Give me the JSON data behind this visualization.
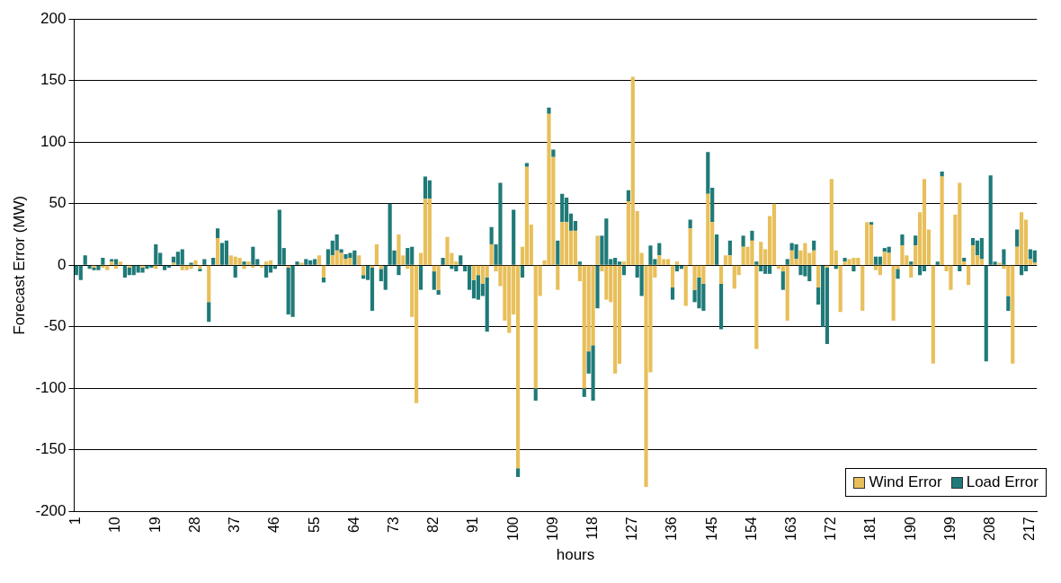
{
  "chart_data": {
    "type": "bar",
    "stacked": true,
    "xlabel": "hours",
    "ylabel": "Forecast Error (MW)",
    "categories": [
      "1",
      null,
      null,
      null,
      null,
      null,
      null,
      null,
      null,
      "10",
      null,
      null,
      null,
      null,
      null,
      null,
      null,
      null,
      "19",
      null,
      null,
      null,
      null,
      null,
      null,
      null,
      null,
      "28",
      null,
      null,
      null,
      null,
      null,
      null,
      null,
      null,
      "37",
      null,
      null,
      null,
      null,
      null,
      null,
      null,
      null,
      "46",
      null,
      null,
      null,
      null,
      null,
      null,
      null,
      null,
      "55",
      null,
      null,
      null,
      null,
      null,
      null,
      null,
      null,
      "64",
      null,
      null,
      null,
      null,
      null,
      null,
      null,
      null,
      "73",
      null,
      null,
      null,
      null,
      null,
      null,
      null,
      null,
      "82",
      null,
      null,
      null,
      null,
      null,
      null,
      null,
      null,
      "91",
      null,
      null,
      null,
      null,
      null,
      null,
      null,
      null,
      "100",
      null,
      null,
      null,
      null,
      null,
      null,
      null,
      null,
      "109",
      null,
      null,
      null,
      null,
      null,
      null,
      null,
      null,
      "118",
      null,
      null,
      null,
      null,
      null,
      null,
      null,
      null,
      "127",
      null,
      null,
      null,
      null,
      null,
      null,
      null,
      null,
      "136",
      null,
      null,
      null,
      null,
      null,
      null,
      null,
      null,
      "145",
      null,
      null,
      null,
      null,
      null,
      null,
      null,
      null,
      "154",
      null,
      null,
      null,
      null,
      null,
      null,
      null,
      null,
      "163",
      null,
      null,
      null,
      null,
      null,
      null,
      null,
      null,
      "172",
      null,
      null,
      null,
      null,
      null,
      null,
      null,
      null,
      "181",
      null,
      null,
      null,
      null,
      null,
      null,
      null,
      null,
      "190",
      null,
      null,
      null,
      null,
      null,
      null,
      null,
      null,
      "199",
      null,
      null,
      null,
      null,
      null,
      null,
      null,
      null,
      "208",
      null,
      null,
      null,
      null,
      null,
      null,
      null,
      null,
      "217",
      null
    ],
    "series": [
      {
        "name": "Wind Error",
        "color": "#e8bf5a",
        "values": [
          0,
          0,
          0,
          0,
          -2,
          0,
          -2,
          -4,
          3,
          -3,
          3,
          0,
          -2,
          0,
          0,
          -2,
          0,
          0,
          -3,
          0,
          0,
          0,
          2,
          0,
          -4,
          -4,
          -3,
          4,
          -3,
          0,
          -30,
          0,
          22,
          0,
          0,
          8,
          7,
          6,
          -3,
          3,
          -2,
          0,
          -2,
          3,
          4,
          0,
          0,
          0,
          -2,
          0,
          0,
          2,
          0,
          0,
          0,
          8,
          -10,
          0,
          8,
          12,
          10,
          5,
          6,
          0,
          8,
          -8,
          0,
          -2,
          17,
          -3,
          0,
          0,
          0,
          25,
          8,
          -3,
          -42,
          -112,
          10,
          54,
          54,
          -5,
          -20,
          0,
          23,
          10,
          3,
          0,
          0,
          0,
          -12,
          -8,
          -15,
          -10,
          17,
          -5,
          -17,
          -45,
          -55,
          -40,
          -165,
          15,
          80,
          33,
          -100,
          -25,
          4,
          123,
          88,
          -20,
          35,
          35,
          28,
          28,
          -13,
          -100,
          -70,
          -65,
          24,
          -5,
          -28,
          -30,
          -88,
          -80,
          3,
          52,
          153,
          44,
          10,
          -180,
          -87,
          -10,
          8,
          5,
          5,
          -18,
          3,
          0,
          -33,
          30,
          -20,
          -10,
          -15,
          58,
          35,
          0,
          -15,
          8,
          8,
          -19,
          -8,
          15,
          15,
          20,
          -68,
          19,
          13,
          40,
          50,
          -3,
          -5,
          -45,
          12,
          5,
          12,
          18,
          10,
          12,
          -18,
          0,
          -2,
          70,
          12,
          -38,
          3,
          5,
          6,
          6,
          -37,
          35,
          33,
          -4,
          -8,
          11,
          10,
          -45,
          -3,
          16,
          8,
          -10,
          16,
          43,
          70,
          29,
          -80,
          0,
          72,
          -5,
          -20,
          41,
          67,
          3,
          -16,
          16,
          8,
          5,
          0,
          0,
          0,
          2,
          -3,
          -25,
          -80,
          15,
          43,
          37,
          5,
          2
        ]
      },
      {
        "name": "Load Error",
        "color": "#1f7a78",
        "values": [
          -8,
          -12,
          8,
          -3,
          -2,
          -4,
          6,
          0,
          2,
          5,
          0,
          -10,
          -6,
          -8,
          -6,
          -4,
          -3,
          -2,
          17,
          10,
          -4,
          -2,
          5,
          11,
          13,
          0,
          2,
          0,
          -2,
          5,
          -16,
          6,
          8,
          18,
          20,
          0,
          -10,
          0,
          3,
          0,
          15,
          5,
          0,
          -10,
          -6,
          -3,
          45,
          14,
          -38,
          -42,
          3,
          0,
          5,
          4,
          5,
          0,
          -4,
          13,
          12,
          13,
          3,
          4,
          4,
          12,
          0,
          -3,
          -12,
          -35,
          0,
          -10,
          -20,
          50,
          12,
          -8,
          0,
          14,
          15,
          0,
          -20,
          18,
          15,
          -15,
          -4,
          6,
          0,
          -3,
          -5,
          8,
          -5,
          -20,
          -15,
          -20,
          -10,
          -44,
          14,
          17,
          67,
          0,
          0,
          45,
          -7,
          -10,
          3,
          0,
          -10,
          0,
          0,
          5,
          6,
          20,
          23,
          20,
          14,
          8,
          3,
          -7,
          -18,
          -45,
          -35,
          24,
          38,
          5,
          6,
          3,
          -8,
          9,
          0,
          -10,
          -25,
          0,
          16,
          5,
          10,
          0,
          0,
          -10,
          -5,
          -3,
          0,
          7,
          -10,
          -25,
          -22,
          34,
          28,
          25,
          -37,
          0,
          12,
          0,
          0,
          9,
          0,
          8,
          3,
          -5,
          -7,
          -7,
          0,
          0,
          -15,
          5,
          6,
          12,
          -8,
          -9,
          -13,
          8,
          -14,
          -50,
          -62,
          0,
          -3,
          0,
          3,
          0,
          -5,
          0,
          0,
          0,
          2,
          7,
          7,
          3,
          5,
          0,
          -8,
          9,
          0,
          3,
          8,
          -8,
          -5,
          0,
          0,
          3,
          4,
          0,
          0,
          0,
          -5,
          3,
          0,
          6,
          12,
          17,
          -78,
          73,
          3,
          0,
          13,
          -12,
          0,
          14,
          -8,
          -5,
          8,
          10
        ]
      }
    ],
    "ylim": [
      -200,
      200
    ],
    "yticks": [
      -200,
      -150,
      -100,
      -50,
      0,
      50,
      100,
      150,
      200
    ],
    "grid": "y",
    "legend": "bottom right"
  }
}
